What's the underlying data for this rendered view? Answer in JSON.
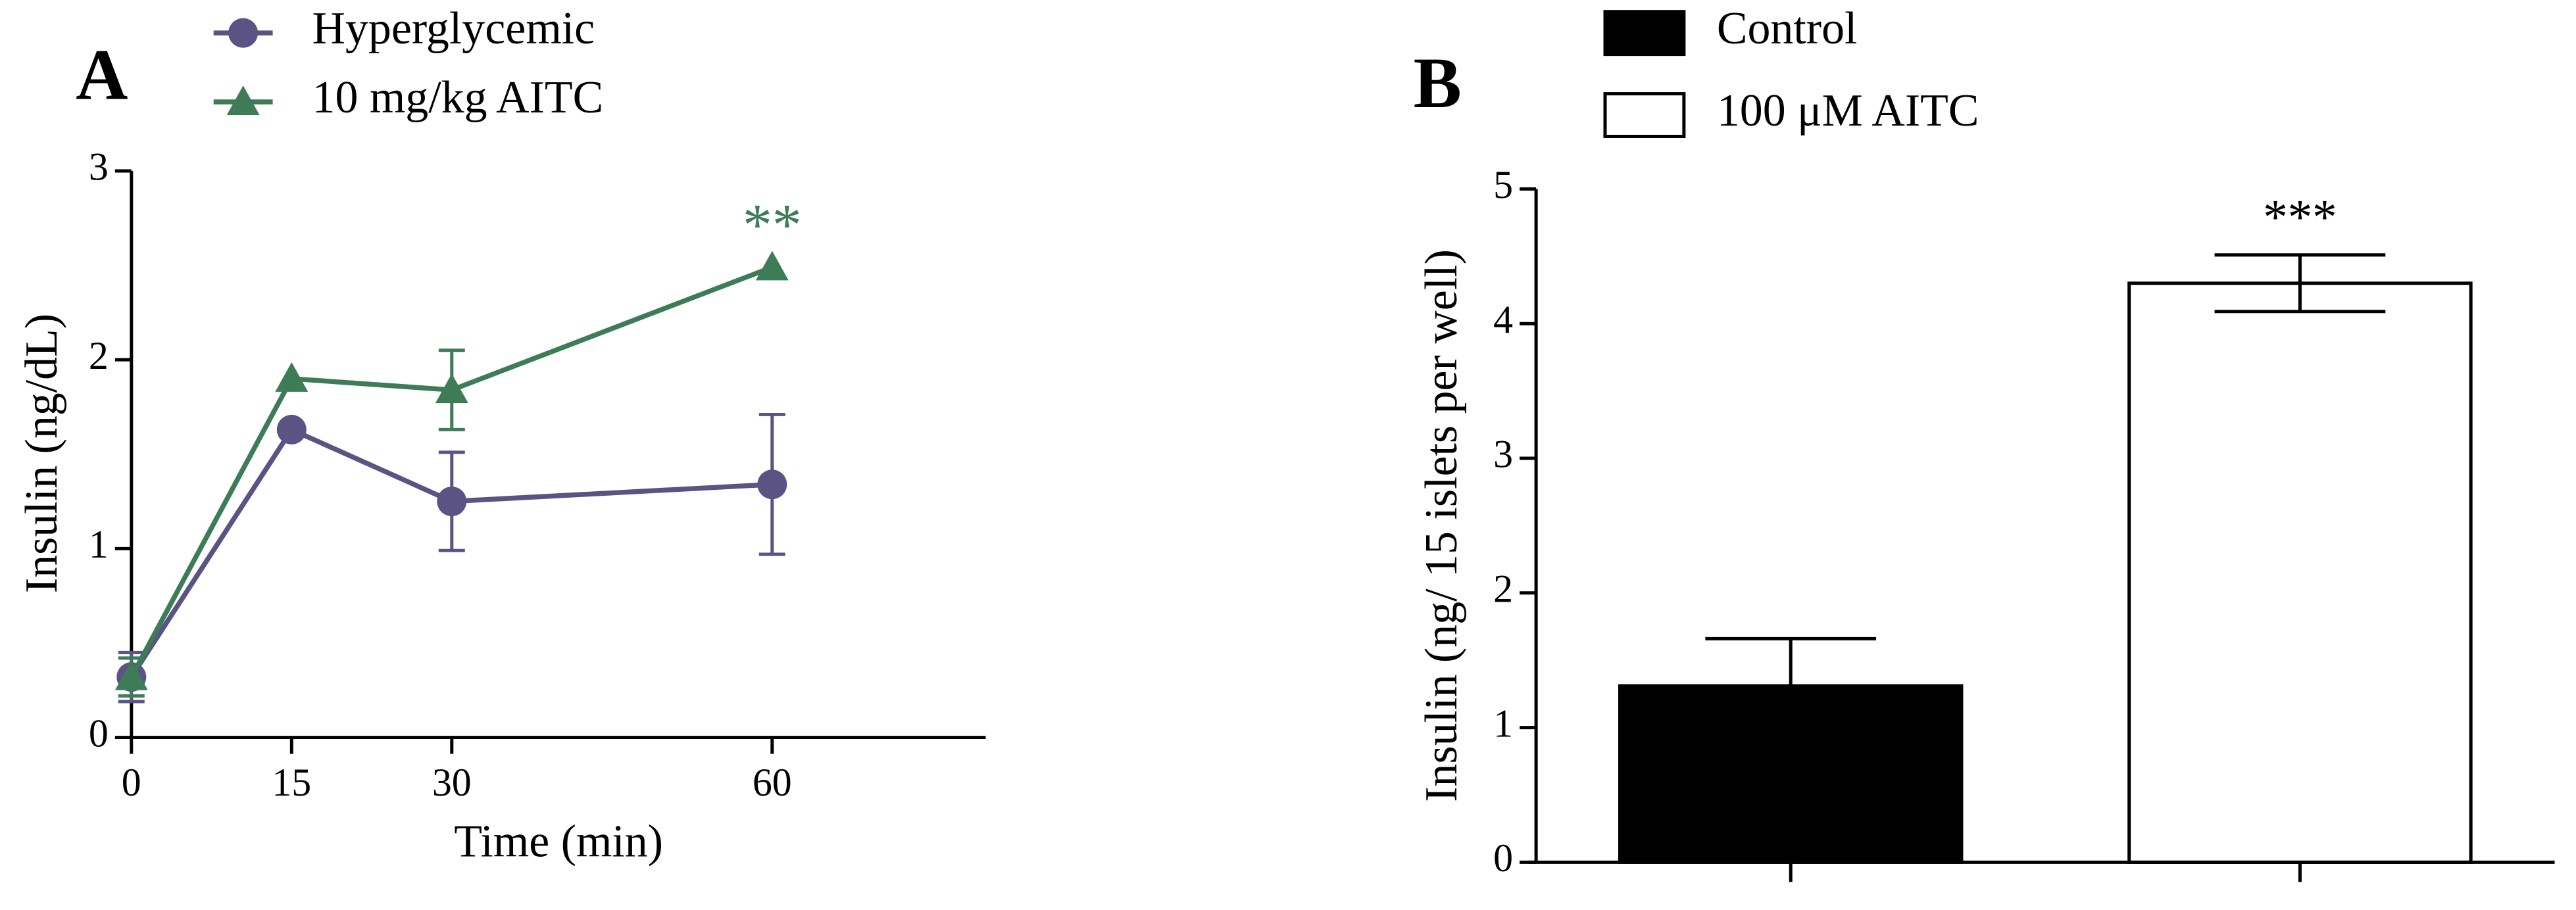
{
  "chart_data": [
    {
      "type": "line",
      "panel": "A",
      "xlabel": "Time (min)",
      "ylabel": "Insulin (ng/dL)",
      "x": [
        0,
        15,
        30,
        60
      ],
      "xlim": [
        0,
        80
      ],
      "xticks": [
        0,
        15,
        30,
        60
      ],
      "ylim": [
        0,
        3
      ],
      "yticks": [
        0,
        1,
        2,
        3
      ],
      "series": [
        {
          "name": "Hyperglycemic",
          "color": "#5b5383",
          "marker": "circle",
          "values": [
            0.32,
            1.63,
            1.25,
            1.34
          ],
          "errors": [
            0.13,
            null,
            0.26,
            0.37
          ]
        },
        {
          "name": "10 mg/kg AITC",
          "color": "#3e7c58",
          "marker": "triangle",
          "values": [
            0.32,
            1.9,
            1.84,
            2.49
          ],
          "errors": [
            0.1,
            null,
            0.21,
            null
          ]
        }
      ],
      "annotations": [
        {
          "text": "**",
          "color": "#3e7c58"
        }
      ]
    },
    {
      "type": "bar",
      "panel": "B",
      "ylabel": "Insulin (ng/ 15 islets per well)",
      "categories": [
        null,
        null
      ],
      "ylim": [
        0,
        5
      ],
      "yticks": [
        0,
        1,
        2,
        3,
        4,
        5
      ],
      "series": [
        {
          "name": "Control",
          "color": "#000000",
          "values": [
            1.31,
            null
          ],
          "errors": [
            0.35,
            null
          ]
        },
        {
          "name": "100 μM AITC",
          "color": "#ffffff",
          "values": [
            null,
            4.3
          ],
          "errors": [
            null,
            0.21
          ]
        }
      ],
      "annotations": [
        {
          "text": "***",
          "color": "#000000"
        }
      ]
    }
  ]
}
